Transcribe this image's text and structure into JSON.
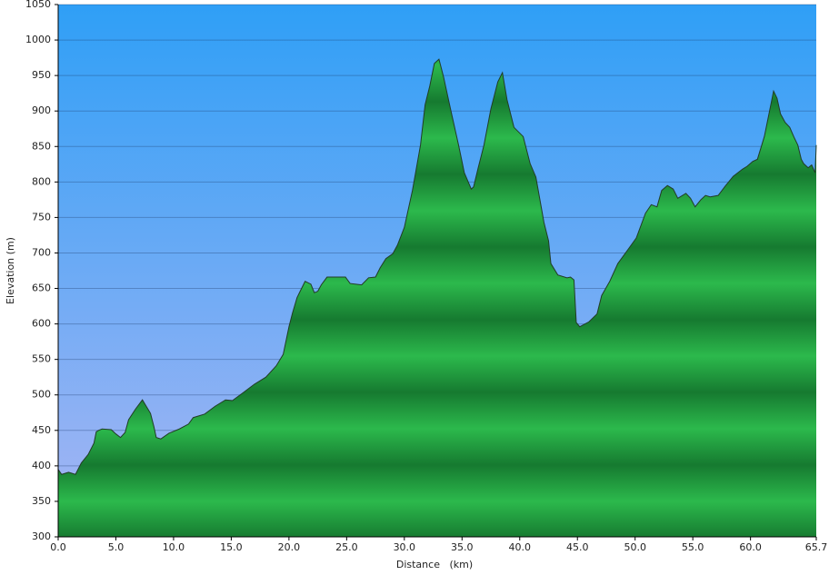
{
  "chart_data": {
    "type": "area",
    "x_label": "Distance   (km)",
    "y_label": "Elevation (m)",
    "color": "#22a542",
    "grid": true,
    "xlim": [
      0,
      65.7
    ],
    "ylim": [
      300,
      1050
    ],
    "xticks": [
      {
        "value": 0,
        "label": "0.0"
      },
      {
        "value": 5,
        "label": "5.0"
      },
      {
        "value": 10,
        "label": "10.0"
      },
      {
        "value": 15,
        "label": "15.0"
      },
      {
        "value": 20,
        "label": "20.0"
      },
      {
        "value": 25,
        "label": "25.0"
      },
      {
        "value": 30,
        "label": "30.0"
      },
      {
        "value": 35,
        "label": "35.0"
      },
      {
        "value": 40,
        "label": "40.0"
      },
      {
        "value": 45,
        "label": "45.0"
      },
      {
        "value": 50,
        "label": "50.0"
      },
      {
        "value": 55,
        "label": "55.0"
      },
      {
        "value": 60,
        "label": "60.0"
      },
      65.7
    ],
    "yticks": [
      300,
      350,
      400,
      450,
      500,
      550,
      600,
      650,
      700,
      750,
      800,
      850,
      900,
      950,
      1000,
      1050
    ],
    "x": [
      0,
      0.3,
      0.9,
      1.5,
      2.0,
      2.6,
      3.1,
      3.3,
      3.5,
      3.8,
      4.6,
      5.0,
      5.4,
      5.8,
      6.1,
      6.7,
      7.3,
      8.0,
      8.3,
      8.5,
      8.9,
      9.6,
      10.5,
      11.3,
      11.7,
      12.7,
      13.6,
      14.5,
      15.1,
      16.1,
      17.0,
      18.0,
      18.9,
      19.5,
      20.0,
      20.3,
      20.7,
      21.0,
      21.4,
      21.9,
      22.2,
      22.5,
      22.8,
      23.3,
      24.9,
      25.3,
      25.8,
      26.3,
      26.9,
      27.5,
      27.9,
      28.4,
      29.0,
      29.4,
      30.0,
      30.7,
      31.4,
      31.8,
      32.2,
      32.6,
      33.0,
      33.4,
      34.0,
      34.7,
      35.2,
      35.8,
      36.0,
      36.4,
      36.9,
      37.5,
      38.1,
      38.5,
      38.9,
      39.5,
      40.3,
      40.9,
      41.4,
      42.1,
      42.5,
      42.7,
      43.3,
      44.1,
      44.4,
      44.7,
      44.9,
      45.2,
      46.0,
      46.7,
      47.1,
      47.8,
      48.5,
      49.3,
      50.1,
      50.9,
      51.4,
      51.9,
      52.3,
      52.8,
      53.3,
      53.7,
      54.4,
      54.8,
      55.2,
      55.7,
      56.1,
      56.5,
      57.2,
      57.8,
      58.5,
      59.3,
      59.7,
      60.2,
      60.6,
      61.2,
      61.6,
      62.0,
      62.3,
      62.6,
      63.0,
      63.4,
      63.8,
      64.1,
      64.4,
      64.6,
      65.0,
      65.3,
      65.6,
      65.7
    ],
    "values": [
      395,
      388,
      391,
      388,
      404,
      416,
      432,
      448,
      450,
      452,
      451,
      445,
      440,
      447,
      465,
      480,
      493,
      474,
      455,
      440,
      438,
      446,
      452,
      459,
      468,
      473,
      484,
      493,
      492,
      504,
      515,
      525,
      541,
      557,
      596,
      615,
      637,
      647,
      660,
      656,
      644,
      646,
      655,
      666,
      666,
      657,
      656,
      655,
      665,
      666,
      679,
      692,
      699,
      711,
      736,
      788,
      852,
      909,
      935,
      967,
      973,
      948,
      903,
      852,
      813,
      790,
      793,
      820,
      852,
      903,
      941,
      954,
      916,
      877,
      864,
      826,
      807,
      743,
      717,
      685,
      669,
      665,
      666,
      662,
      602,
      596,
      603,
      614,
      640,
      660,
      685,
      703,
      721,
      756,
      768,
      765,
      788,
      795,
      790,
      777,
      784,
      777,
      765,
      775,
      781,
      779,
      781,
      794,
      808,
      818,
      822,
      829,
      832,
      864,
      896,
      928,
      918,
      896,
      884,
      877,
      862,
      852,
      832,
      826,
      820,
      824,
      813,
      852
    ]
  }
}
